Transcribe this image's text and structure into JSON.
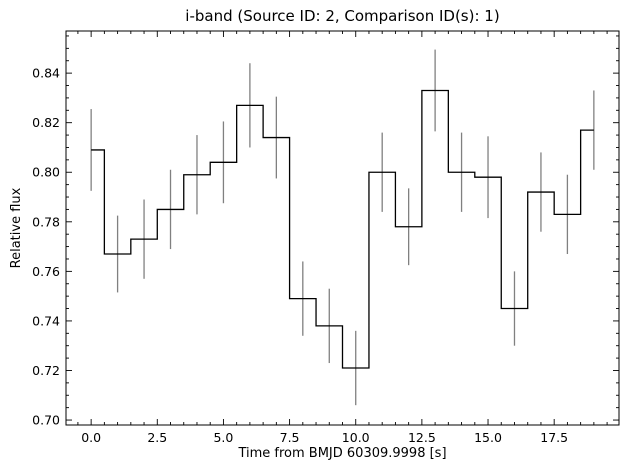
{
  "chart_data": {
    "type": "line",
    "title": "i-band (Source ID: 2, Comparison ID(s): 1)",
    "xlabel": "Time from BMJD 60309.9998 [s]",
    "ylabel": "Relative flux",
    "xlim": [
      -0.95,
      19.95
    ],
    "ylim": [
      0.698,
      0.857
    ],
    "xticks": [
      0.0,
      2.5,
      5.0,
      7.5,
      10.0,
      12.5,
      15.0,
      17.5
    ],
    "xtick_labels": [
      "0.0",
      "2.5",
      "5.0",
      "7.5",
      "10.0",
      "12.5",
      "15.0",
      "17.5"
    ],
    "yticks": [
      0.7,
      0.72,
      0.74,
      0.76,
      0.78,
      0.8,
      0.82,
      0.84
    ],
    "ytick_labels": [
      "0.70",
      "0.72",
      "0.74",
      "0.76",
      "0.78",
      "0.80",
      "0.82",
      "0.84"
    ],
    "grid": false,
    "series": [
      {
        "style": "step-mid",
        "color": "#000000",
        "x": [
          0,
          1,
          2,
          3,
          4,
          5,
          6,
          7,
          8,
          9,
          10,
          11,
          12,
          13,
          14,
          15,
          16,
          17,
          18,
          19
        ],
        "y": [
          0.809,
          0.767,
          0.773,
          0.785,
          0.799,
          0.804,
          0.827,
          0.814,
          0.749,
          0.738,
          0.721,
          0.8,
          0.778,
          0.833,
          0.8,
          0.798,
          0.745,
          0.792,
          0.783,
          0.817
        ],
        "err_color": "#808080",
        "yerr": [
          0.0165,
          0.0155,
          0.016,
          0.016,
          0.016,
          0.0165,
          0.017,
          0.0165,
          0.015,
          0.015,
          0.015,
          0.016,
          0.0155,
          0.0165,
          0.016,
          0.0165,
          0.015,
          0.016,
          0.016,
          0.016
        ]
      }
    ]
  }
}
